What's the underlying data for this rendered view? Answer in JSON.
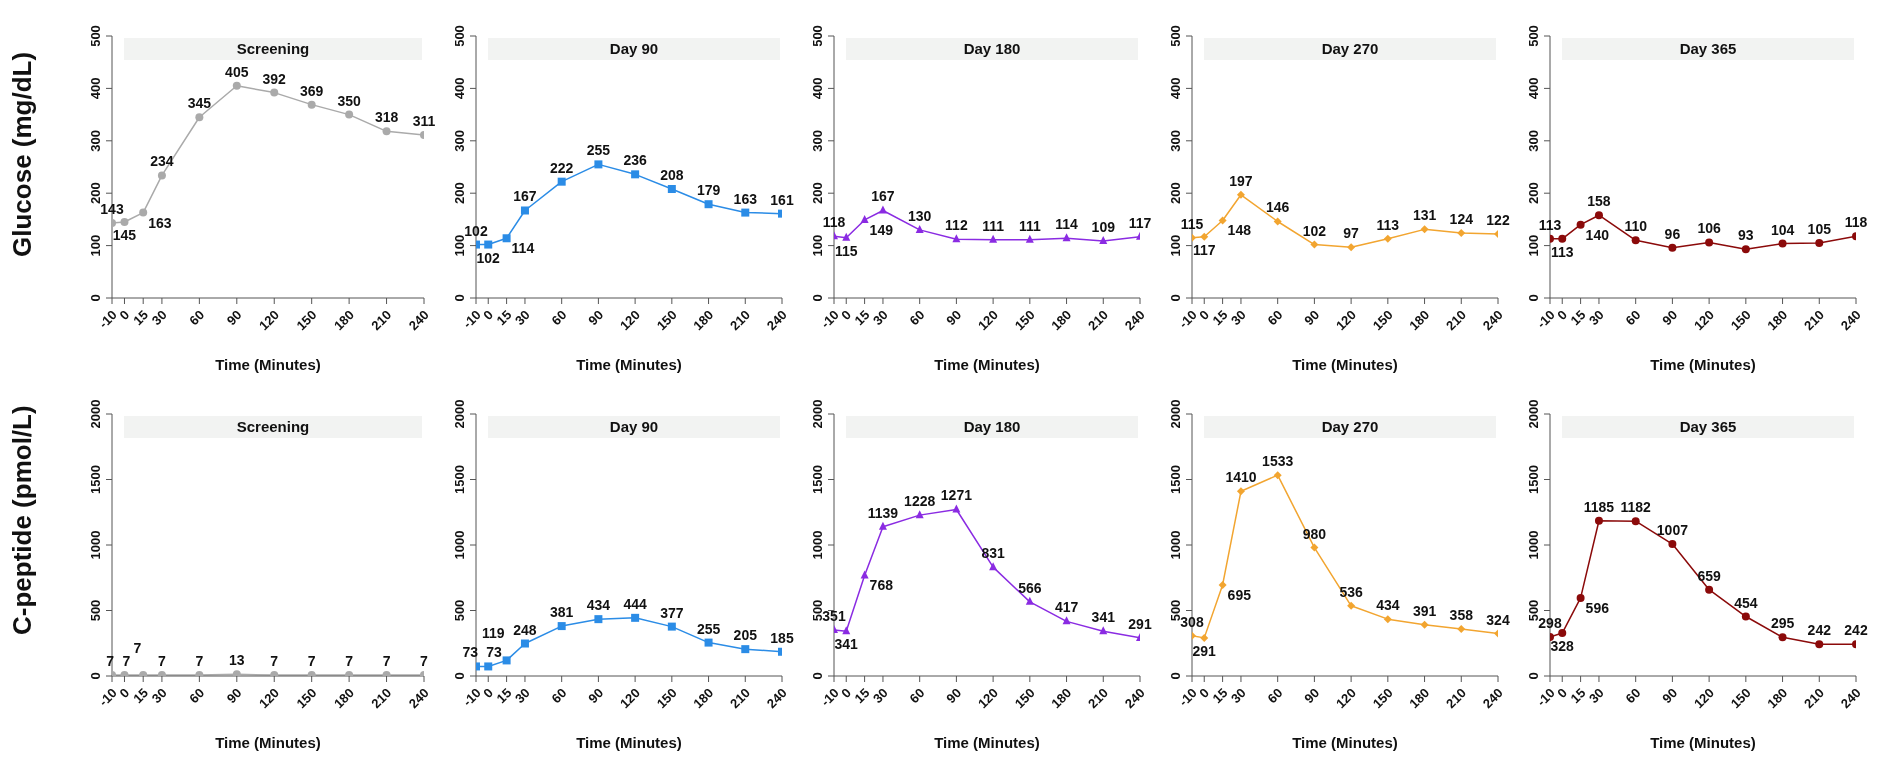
{
  "chart_data": [
    {
      "type": "line",
      "title": "Screening",
      "ylabel": "Glucose (mg/dL)",
      "xlabel": "Time (Minutes)",
      "x": [
        -10,
        0,
        15,
        30,
        60,
        90,
        120,
        150,
        180,
        210,
        240
      ],
      "xlim": [
        -10,
        240
      ],
      "xticks": [
        -10,
        0,
        15,
        30,
        60,
        90,
        120,
        150,
        180,
        210,
        240
      ],
      "ylim": [
        0,
        500
      ],
      "yticks": [
        0,
        100,
        200,
        300,
        400,
        500
      ],
      "grid": false,
      "legend": false,
      "marker": "circle",
      "data_labels": true,
      "series": [
        {
          "color": "#aaaaaa",
          "values": [
            143,
            145,
            163,
            234,
            345,
            405,
            392,
            369,
            350,
            318,
            311
          ]
        }
      ]
    },
    {
      "type": "line",
      "title": "Day 90",
      "xlabel": "Time (Minutes)",
      "x": [
        -10,
        0,
        15,
        30,
        60,
        90,
        120,
        150,
        180,
        210,
        240
      ],
      "xlim": [
        -10,
        240
      ],
      "xticks": [
        -10,
        0,
        15,
        30,
        60,
        90,
        120,
        150,
        180,
        210,
        240
      ],
      "ylim": [
        0,
        500
      ],
      "yticks": [
        0,
        100,
        200,
        300,
        400,
        500
      ],
      "grid": false,
      "legend": false,
      "marker": "square",
      "data_labels": true,
      "series": [
        {
          "color": "#2b8ce6",
          "values": [
            102,
            102,
            114,
            167,
            222,
            255,
            236,
            208,
            179,
            163,
            161
          ]
        }
      ]
    },
    {
      "type": "line",
      "title": "Day 180",
      "xlabel": "Time (Minutes)",
      "x": [
        -10,
        0,
        15,
        30,
        60,
        90,
        120,
        150,
        180,
        210,
        240
      ],
      "xlim": [
        -10,
        240
      ],
      "xticks": [
        -10,
        0,
        15,
        30,
        60,
        90,
        120,
        150,
        180,
        210,
        240
      ],
      "ylim": [
        0,
        500
      ],
      "yticks": [
        0,
        100,
        200,
        300,
        400,
        500
      ],
      "grid": false,
      "legend": false,
      "marker": "triangle",
      "data_labels": true,
      "series": [
        {
          "color": "#8a2be2",
          "values": [
            118,
            115,
            149,
            167,
            130,
            112,
            111,
            111,
            114,
            109,
            117
          ]
        }
      ]
    },
    {
      "type": "line",
      "title": "Day 270",
      "xlabel": "Time (Minutes)",
      "x": [
        -10,
        0,
        15,
        30,
        60,
        90,
        120,
        150,
        180,
        210,
        240
      ],
      "xlim": [
        -10,
        240
      ],
      "xticks": [
        -10,
        0,
        15,
        30,
        60,
        90,
        120,
        150,
        180,
        210,
        240
      ],
      "ylim": [
        0,
        500
      ],
      "yticks": [
        0,
        100,
        200,
        300,
        400,
        500
      ],
      "grid": false,
      "legend": false,
      "marker": "diamond",
      "data_labels": true,
      "series": [
        {
          "color": "#f2a530",
          "values": [
            115,
            117,
            148,
            197,
            146,
            102,
            97,
            113,
            131,
            124,
            122
          ]
        }
      ]
    },
    {
      "type": "line",
      "title": "Day 365",
      "xlabel": "Time (Minutes)",
      "x": [
        -10,
        0,
        15,
        30,
        60,
        90,
        120,
        150,
        180,
        210,
        240
      ],
      "xlim": [
        -10,
        240
      ],
      "xticks": [
        -10,
        0,
        15,
        30,
        60,
        90,
        120,
        150,
        180,
        210,
        240
      ],
      "ylim": [
        0,
        500
      ],
      "yticks": [
        0,
        100,
        200,
        300,
        400,
        500
      ],
      "grid": false,
      "legend": false,
      "marker": "circle",
      "data_labels": true,
      "series": [
        {
          "color": "#8b0a0a",
          "values": [
            113,
            113,
            140,
            158,
            110,
            96,
            106,
            93,
            104,
            105,
            118
          ]
        }
      ]
    },
    {
      "type": "line",
      "title": "Screening",
      "ylabel": "C-peptide (pmol/L)",
      "xlabel": "Time (Minutes)",
      "x": [
        -10,
        0,
        15,
        30,
        60,
        90,
        120,
        150,
        180,
        210,
        240
      ],
      "xlim": [
        -10,
        240
      ],
      "xticks": [
        -10,
        0,
        15,
        30,
        60,
        90,
        120,
        150,
        180,
        210,
        240
      ],
      "ylim": [
        0,
        2000
      ],
      "yticks": [
        0,
        500,
        1000,
        1500,
        2000
      ],
      "grid": false,
      "legend": false,
      "marker": "circle",
      "data_labels": true,
      "series": [
        {
          "color": "#aaaaaa",
          "values": [
            7,
            7,
            7,
            7,
            7,
            13,
            7,
            7,
            7,
            7,
            7
          ]
        }
      ]
    },
    {
      "type": "line",
      "title": "Day 90",
      "xlabel": "Time (Minutes)",
      "x": [
        -10,
        0,
        15,
        30,
        60,
        90,
        120,
        150,
        180,
        210,
        240
      ],
      "xlim": [
        -10,
        240
      ],
      "xticks": [
        -10,
        0,
        15,
        30,
        60,
        90,
        120,
        150,
        180,
        210,
        240
      ],
      "ylim": [
        0,
        2000
      ],
      "yticks": [
        0,
        500,
        1000,
        1500,
        2000
      ],
      "grid": false,
      "legend": false,
      "marker": "square",
      "data_labels": true,
      "series": [
        {
          "color": "#2b8ce6",
          "values": [
            73,
            73,
            119,
            248,
            381,
            434,
            444,
            377,
            255,
            205,
            185
          ]
        }
      ]
    },
    {
      "type": "line",
      "title": "Day 180",
      "xlabel": "Time (Minutes)",
      "x": [
        -10,
        0,
        15,
        30,
        60,
        90,
        120,
        150,
        180,
        210,
        240
      ],
      "xlim": [
        -10,
        240
      ],
      "xticks": [
        -10,
        0,
        15,
        30,
        60,
        90,
        120,
        150,
        180,
        210,
        240
      ],
      "ylim": [
        0,
        2000
      ],
      "yticks": [
        0,
        500,
        1000,
        1500,
        2000
      ],
      "grid": false,
      "legend": false,
      "marker": "triangle",
      "data_labels": true,
      "series": [
        {
          "color": "#8a2be2",
          "values": [
            351,
            341,
            768,
            1139,
            1228,
            1271,
            831,
            566,
            417,
            341,
            291
          ]
        }
      ]
    },
    {
      "type": "line",
      "title": "Day 270",
      "xlabel": "Time (Minutes)",
      "x": [
        -10,
        0,
        15,
        30,
        60,
        90,
        120,
        150,
        180,
        210,
        240
      ],
      "xlim": [
        -10,
        240
      ],
      "xticks": [
        -10,
        0,
        15,
        30,
        60,
        90,
        120,
        150,
        180,
        210,
        240
      ],
      "ylim": [
        0,
        2000
      ],
      "yticks": [
        0,
        500,
        1000,
        1500,
        2000
      ],
      "grid": false,
      "legend": false,
      "marker": "diamond",
      "data_labels": true,
      "series": [
        {
          "color": "#f2a530",
          "values": [
            308,
            291,
            695,
            1410,
            1533,
            980,
            536,
            434,
            391,
            358,
            324
          ]
        }
      ]
    },
    {
      "type": "line",
      "title": "Day 365",
      "xlabel": "Time (Minutes)",
      "x": [
        -10,
        0,
        15,
        30,
        60,
        90,
        120,
        150,
        180,
        210,
        240
      ],
      "xlim": [
        -10,
        240
      ],
      "xticks": [
        -10,
        0,
        15,
        30,
        60,
        90,
        120,
        150,
        180,
        210,
        240
      ],
      "ylim": [
        0,
        2000
      ],
      "yticks": [
        0,
        500,
        1000,
        1500,
        2000
      ],
      "grid": false,
      "legend": false,
      "marker": "circle",
      "data_labels": true,
      "series": [
        {
          "color": "#8b0a0a",
          "values": [
            298,
            328,
            596,
            1185,
            1182,
            1007,
            659,
            454,
            295,
            242,
            242
          ]
        }
      ]
    }
  ]
}
